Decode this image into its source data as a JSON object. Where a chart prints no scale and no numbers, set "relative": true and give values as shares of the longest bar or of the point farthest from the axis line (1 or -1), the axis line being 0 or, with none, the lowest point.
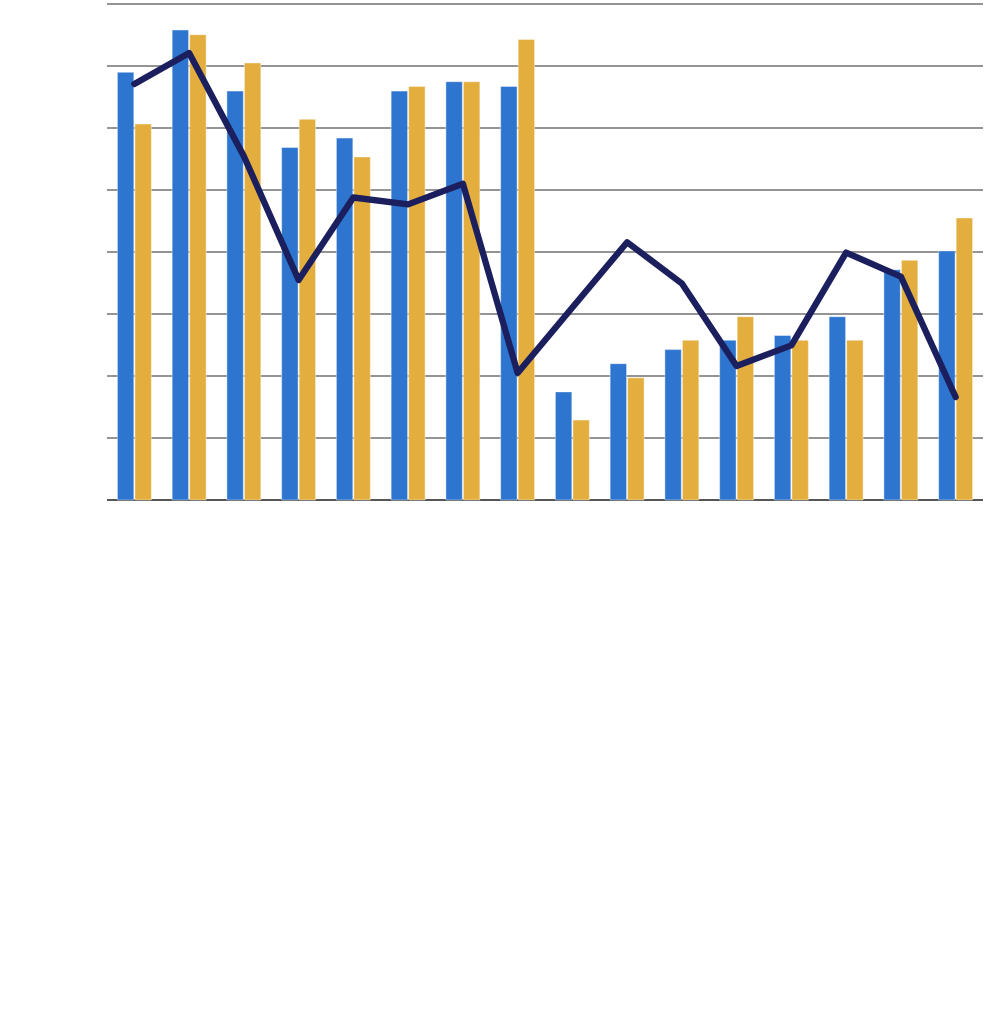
{
  "chart_data": [
    {
      "type": "bar",
      "relative": true,
      "grid": "y",
      "categories": [
        null,
        null,
        null,
        null,
        null,
        null,
        null,
        null,
        null,
        null,
        null,
        null,
        null,
        null,
        null,
        null
      ],
      "series": [
        {
          "color": "#2e75cf",
          "values": [
            0.91,
            1.0,
            0.87,
            0.75,
            0.77,
            0.87,
            0.89,
            0.88,
            0.23,
            0.29,
            0.32,
            0.34,
            0.35,
            0.39,
            0.49,
            0.53
          ]
        },
        {
          "color": "#e3ae3e",
          "values": [
            0.8,
            0.99,
            0.93,
            0.81,
            0.73,
            0.88,
            0.89,
            0.98,
            0.17,
            0.26,
            0.34,
            0.39,
            0.34,
            0.34,
            0.51,
            0.6
          ]
        }
      ]
    },
    {
      "type": "line",
      "relative": true,
      "categories": [
        null,
        null,
        null,
        null,
        null,
        null,
        null,
        null,
        null,
        null,
        null,
        null,
        null,
        null,
        null,
        null
      ],
      "series": [
        {
          "color": "#1b1f5e",
          "values": [
            0.91,
            1.0,
            0.7,
            0.34,
            0.58,
            0.56,
            0.62,
            0.07,
            0.26,
            0.45,
            0.33,
            0.09,
            0.15,
            0.42,
            0.35,
            0.0
          ]
        }
      ]
    }
  ]
}
